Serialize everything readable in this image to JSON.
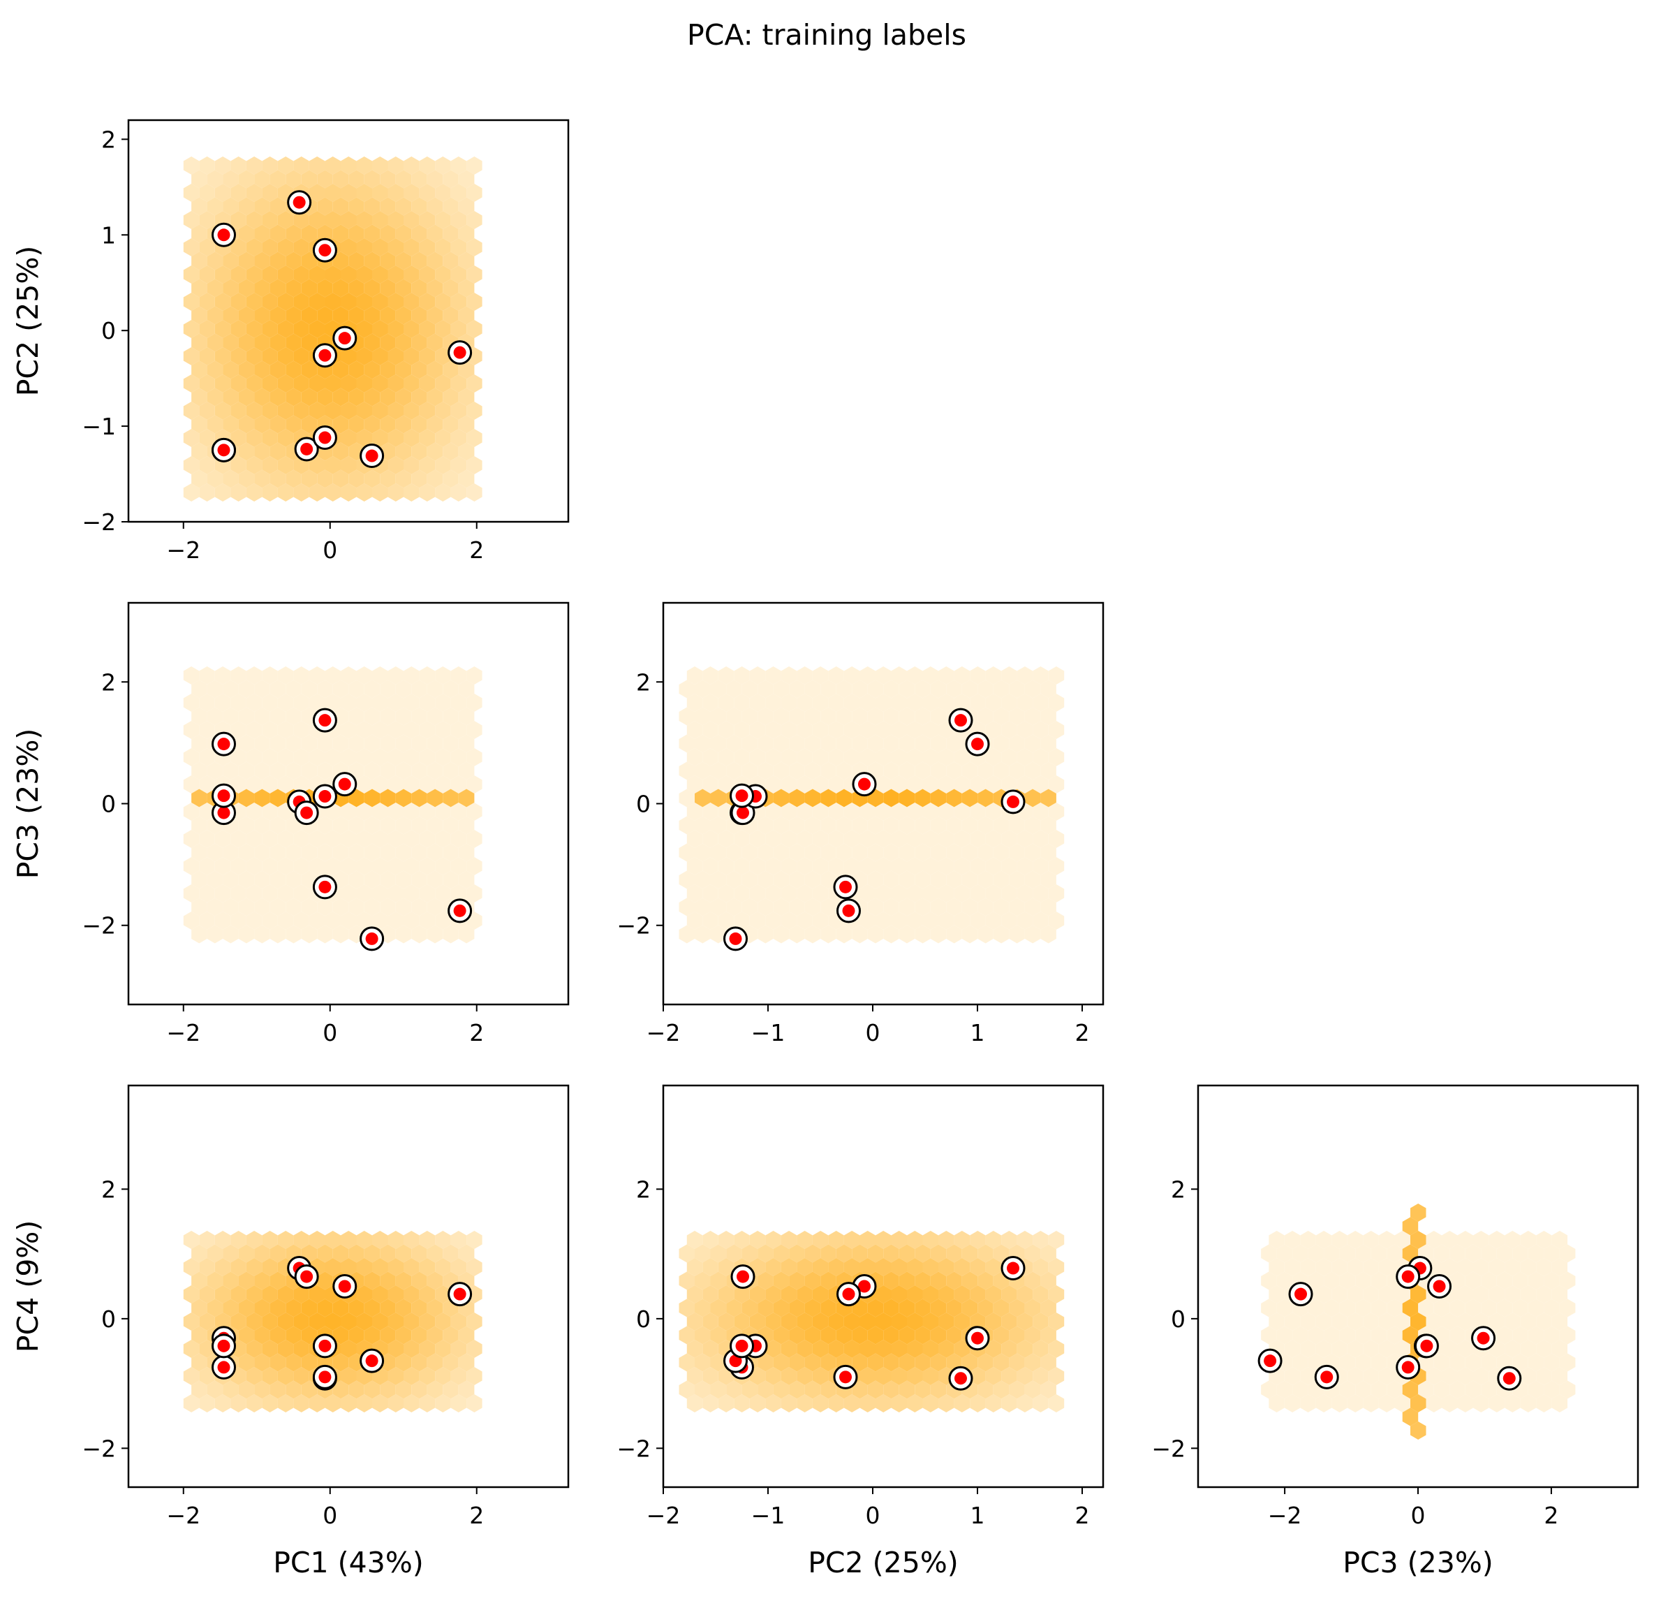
{
  "chart_data": {
    "type": "scatter",
    "title": "PCA: training labels",
    "background": "hexbin density of all samples (orange colormap)",
    "colors": {
      "hex_max": "#ffa500",
      "hex_min": "#fff6e5",
      "marker_fill": "#ff0000",
      "marker_ring": "#000000"
    },
    "components": [
      {
        "name": "PC1",
        "label": "PC1 (43%)",
        "range": [
          -2.75,
          3.25
        ],
        "ticks": [
          -2,
          0,
          2
        ],
        "sd": 1.05
      },
      {
        "name": "PC2",
        "label": "PC2 (25%)",
        "range": [
          -2.0,
          2.2
        ],
        "ticks": [
          -2,
          -1,
          0,
          1,
          2
        ],
        "sd": 0.95
      },
      {
        "name": "PC3",
        "label": "PC3 (23%)",
        "range": [
          -3.3,
          3.3
        ],
        "ticks": [
          -2,
          0,
          2
        ],
        "sd": 1.2
      },
      {
        "name": "PC4",
        "label": "PC4 (9%)",
        "range": [
          -2.6,
          3.6
        ],
        "ticks": [
          -2,
          0,
          2
        ],
        "sd": 0.75
      }
    ],
    "labels": [
      {
        "PC1": -1.45,
        "PC2": 1.0,
        "PC3": 0.98,
        "PC4": -0.3
      },
      {
        "PC1": -0.42,
        "PC2": 1.34,
        "PC3": 0.03,
        "PC4": 0.78
      },
      {
        "PC1": -0.07,
        "PC2": 0.84,
        "PC3": 1.37,
        "PC4": -0.92
      },
      {
        "PC1": 0.2,
        "PC2": -0.08,
        "PC3": 0.32,
        "PC4": 0.5
      },
      {
        "PC1": -0.07,
        "PC2": -0.26,
        "PC3": -1.37,
        "PC4": -0.9
      },
      {
        "PC1": 1.77,
        "PC2": -0.23,
        "PC3": -1.76,
        "PC4": 0.38
      },
      {
        "PC1": -1.45,
        "PC2": -1.25,
        "PC3": -0.15,
        "PC4": -0.75
      },
      {
        "PC1": -0.32,
        "PC2": -1.24,
        "PC3": -0.15,
        "PC4": 0.65
      },
      {
        "PC1": -0.07,
        "PC2": -1.12,
        "PC3": 0.12,
        "PC4": -0.42
      },
      {
        "PC1": 0.57,
        "PC2": -1.31,
        "PC3": -2.22,
        "PC4": -0.65
      },
      {
        "PC1": -1.45,
        "PC2": -1.25,
        "PC3": 0.13,
        "PC4": -0.42
      }
    ],
    "panels": [
      {
        "x": "PC1",
        "y": "PC2",
        "grid": false,
        "ylabel_shown": true,
        "xlabel_shown": false
      },
      {
        "x": "PC1",
        "y": "PC3",
        "grid": false,
        "ylabel_shown": true,
        "xlabel_shown": false
      },
      {
        "x": "PC2",
        "y": "PC3",
        "grid": false,
        "ylabel_shown": false,
        "xlabel_shown": false
      },
      {
        "x": "PC1",
        "y": "PC4",
        "grid": false,
        "ylabel_shown": true,
        "xlabel_shown": true
      },
      {
        "x": "PC2",
        "y": "PC4",
        "grid": false,
        "ylabel_shown": false,
        "xlabel_shown": true
      },
      {
        "x": "PC3",
        "y": "PC4",
        "grid": false,
        "ylabel_shown": false,
        "xlabel_shown": true
      }
    ]
  }
}
